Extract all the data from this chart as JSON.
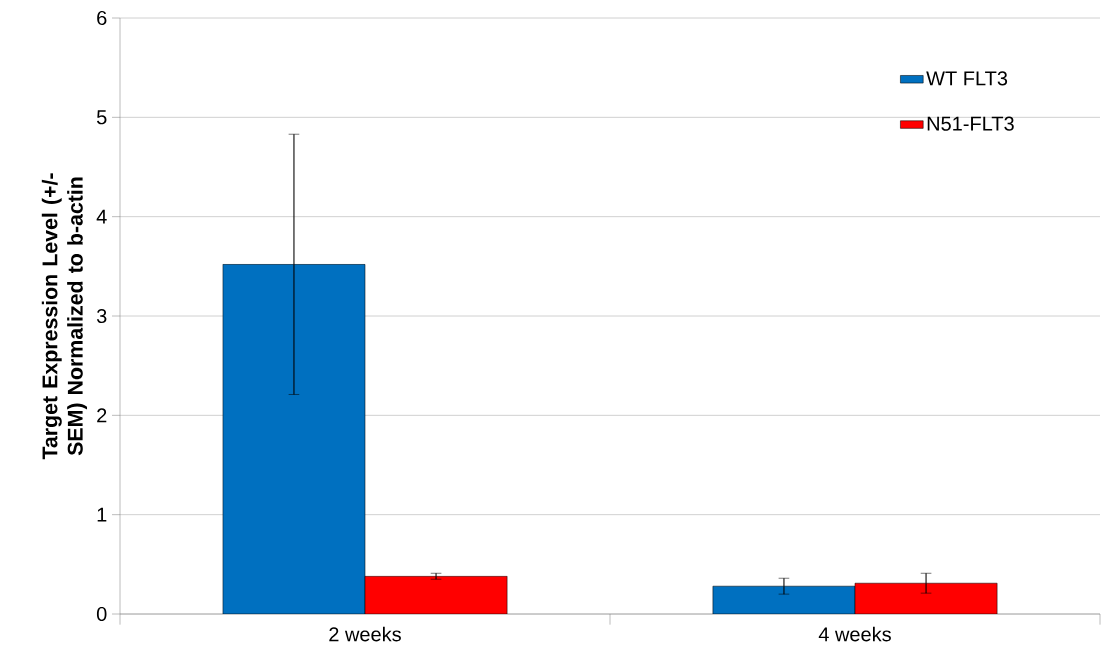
{
  "chart_data": {
    "type": "bar",
    "ylabel": "Target Expression Level (+/- SEM) Normalized to b-actin",
    "categories": [
      "2 weeks",
      "4 weeks"
    ],
    "series": [
      {
        "name": "WT FLT3",
        "color": "#0070c0",
        "values": [
          3.52,
          0.28
        ],
        "errors": [
          1.31,
          0.08
        ]
      },
      {
        "name": "N51-FLT3",
        "color": "#ff0000",
        "values": [
          0.38,
          0.31
        ],
        "errors": [
          0.03,
          0.1
        ]
      }
    ],
    "ylim": [
      0,
      6
    ],
    "yticks": [
      0,
      1,
      2,
      3,
      4,
      5,
      6
    ],
    "grid": "y",
    "legend": "top right"
  }
}
